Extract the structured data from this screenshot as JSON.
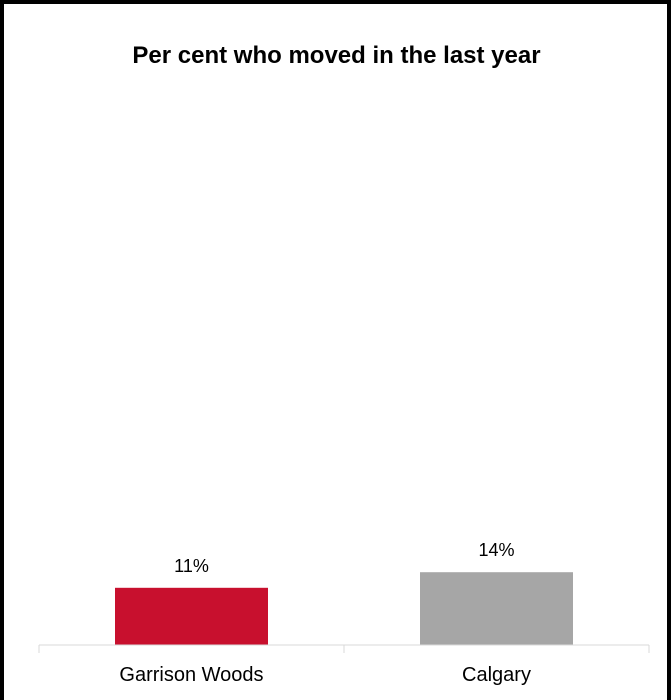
{
  "chart_data": {
    "type": "bar",
    "title": "Per cent who moved in the last year",
    "categories": [
      "Garrison Woods",
      "Calgary"
    ],
    "values": [
      11,
      14
    ],
    "data_labels": [
      "11%",
      "14%"
    ],
    "colors": [
      "#c8102e",
      "#a6a6a6"
    ],
    "ylim": [
      0,
      100
    ],
    "grid": false,
    "legend": "none"
  }
}
